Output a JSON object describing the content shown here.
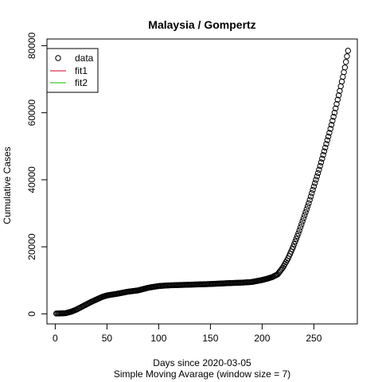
{
  "chart_data": {
    "type": "scatter",
    "title": "Malaysia / Gompertz",
    "xlabel": "Days since 2020-03-05",
    "xlabel2": "Simple Moving Avarage (window size = 7)",
    "ylabel": "Cumulative Cases",
    "xlim": [
      -8,
      292
    ],
    "ylim": [
      -3000,
      82000
    ],
    "xticks": [
      0,
      50,
      100,
      150,
      200,
      250
    ],
    "yticks": [
      0,
      20000,
      40000,
      60000,
      80000
    ],
    "grid": false,
    "legend": {
      "position": "top-left",
      "entries": [
        {
          "label": "data",
          "symbol": "circle",
          "color": "#000000"
        },
        {
          "label": "fit1",
          "symbol": "line",
          "color": "#DF536B"
        },
        {
          "label": "fit2",
          "symbol": "line",
          "color": "#61D04F"
        }
      ]
    },
    "series": [
      {
        "name": "data",
        "marker": "open-circle",
        "color": "#000000",
        "anchors": [
          [
            1,
            100
          ],
          [
            5,
            120
          ],
          [
            10,
            200
          ],
          [
            15,
            600
          ],
          [
            20,
            1200
          ],
          [
            25,
            2000
          ],
          [
            30,
            2800
          ],
          [
            35,
            3600
          ],
          [
            40,
            4300
          ],
          [
            45,
            5000
          ],
          [
            50,
            5500
          ],
          [
            60,
            6000
          ],
          [
            70,
            6600
          ],
          [
            80,
            7000
          ],
          [
            90,
            7800
          ],
          [
            100,
            8300
          ],
          [
            110,
            8500
          ],
          [
            120,
            8600
          ],
          [
            130,
            8700
          ],
          [
            140,
            8800
          ],
          [
            150,
            8900
          ],
          [
            160,
            9050
          ],
          [
            170,
            9200
          ],
          [
            180,
            9300
          ],
          [
            190,
            9500
          ],
          [
            195,
            9800
          ],
          [
            200,
            10100
          ],
          [
            205,
            10500
          ],
          [
            210,
            11000
          ],
          [
            215,
            11800
          ],
          [
            220,
            13800
          ],
          [
            225,
            16500
          ],
          [
            230,
            20000
          ],
          [
            235,
            24000
          ],
          [
            240,
            28500
          ],
          [
            245,
            33000
          ],
          [
            250,
            38000
          ],
          [
            255,
            43000
          ],
          [
            260,
            48500
          ],
          [
            265,
            54000
          ],
          [
            270,
            60000
          ],
          [
            275,
            66500
          ],
          [
            280,
            73500
          ],
          [
            283,
            78500
          ]
        ]
      }
    ]
  }
}
